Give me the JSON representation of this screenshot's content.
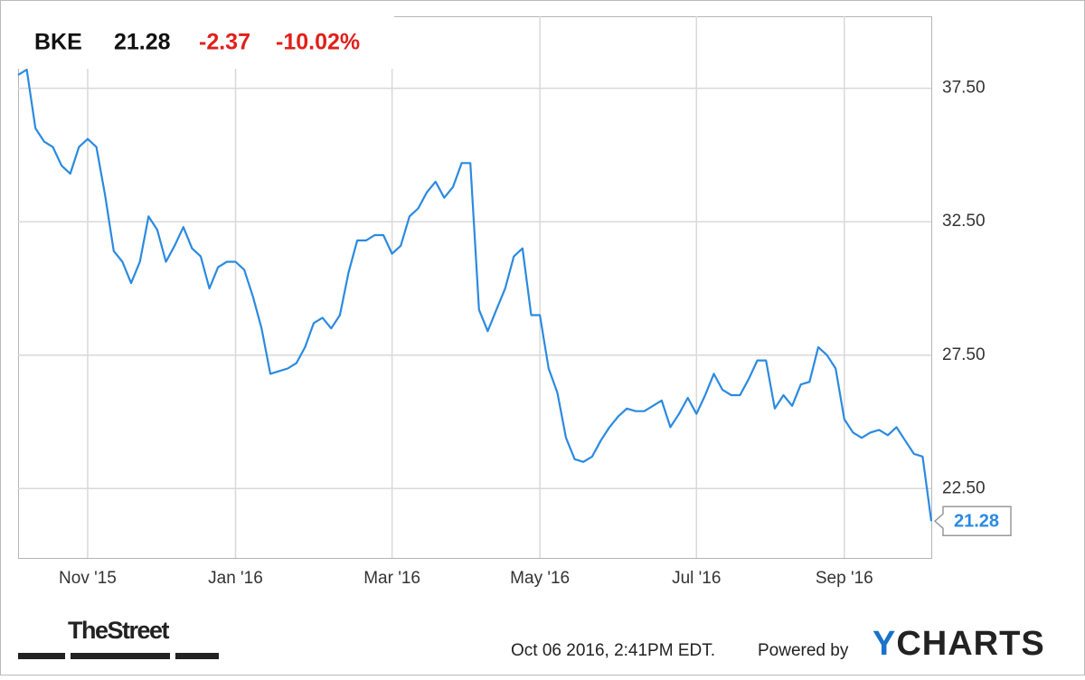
{
  "chart_data": {
    "type": "line",
    "quote": {
      "symbol": "BKE",
      "price": "21.28",
      "change": "-2.37",
      "change_percent": "-10.02%"
    },
    "categories": [
      null,
      null,
      null,
      null,
      null,
      null,
      null,
      null,
      "Nov '15",
      null,
      null,
      null,
      null,
      null,
      null,
      null,
      null,
      null,
      null,
      null,
      null,
      null,
      null,
      null,
      null,
      "Jan '16",
      null,
      null,
      null,
      null,
      null,
      null,
      null,
      null,
      null,
      null,
      null,
      null,
      null,
      null,
      null,
      null,
      null,
      "Mar '16",
      null,
      null,
      null,
      null,
      null,
      null,
      null,
      null,
      null,
      null,
      null,
      null,
      null,
      null,
      null,
      null,
      "May '16",
      null,
      null,
      null,
      null,
      null,
      null,
      null,
      null,
      null,
      null,
      null,
      null,
      null,
      null,
      null,
      null,
      null,
      "Jul '16",
      null,
      null,
      null,
      null,
      null,
      null,
      null,
      null,
      null,
      null,
      null,
      null,
      null,
      null,
      null,
      null,
      "Sep '16",
      null,
      null,
      null,
      null,
      null,
      null,
      null,
      null,
      null,
      null
    ],
    "series": [
      {
        "name": "BKE",
        "color": "#2b8ae0",
        "values": [
          38.0,
          38.2,
          36.0,
          35.5,
          35.3,
          34.6,
          34.3,
          35.3,
          35.6,
          35.3,
          33.5,
          31.4,
          31.0,
          30.2,
          31.0,
          32.7,
          32.2,
          31.0,
          31.6,
          32.3,
          31.5,
          31.2,
          30.0,
          30.8,
          31.0,
          31.0,
          30.7,
          29.7,
          28.5,
          26.8,
          26.9,
          27.0,
          27.2,
          27.8,
          28.7,
          28.9,
          28.5,
          29.0,
          30.6,
          31.8,
          31.8,
          32.0,
          32.0,
          31.3,
          31.6,
          32.7,
          33.0,
          33.6,
          34.0,
          33.4,
          33.8,
          34.7,
          34.7,
          29.2,
          28.4,
          29.2,
          30.0,
          31.2,
          31.5,
          29.0,
          29.0,
          27.0,
          26.1,
          24.4,
          23.6,
          23.5,
          23.7,
          24.3,
          24.8,
          25.2,
          25.5,
          25.4,
          25.4,
          25.6,
          25.8,
          24.8,
          25.3,
          25.9,
          25.3,
          26.0,
          26.8,
          26.2,
          26.0,
          26.0,
          26.6,
          27.3,
          27.3,
          25.5,
          26.0,
          25.6,
          26.4,
          26.5,
          27.8,
          27.5,
          27.0,
          25.1,
          24.6,
          24.4,
          24.6,
          24.7,
          24.5,
          24.8,
          24.3,
          23.8,
          23.7,
          21.28
        ]
      }
    ],
    "ylim": [
      19.9,
      40.2
    ],
    "yticks": [
      {
        "value": 22.5,
        "label": "22.50"
      },
      {
        "value": 27.5,
        "label": "27.50"
      },
      {
        "value": 32.5,
        "label": "32.50"
      },
      {
        "value": 37.5,
        "label": "37.50"
      }
    ],
    "grid": true,
    "timestamp": "Oct 06 2016, 2:41PM EDT.",
    "powered_by": "Powered by",
    "brand": "YCHARTS",
    "source_logo": "TheStreet"
  }
}
